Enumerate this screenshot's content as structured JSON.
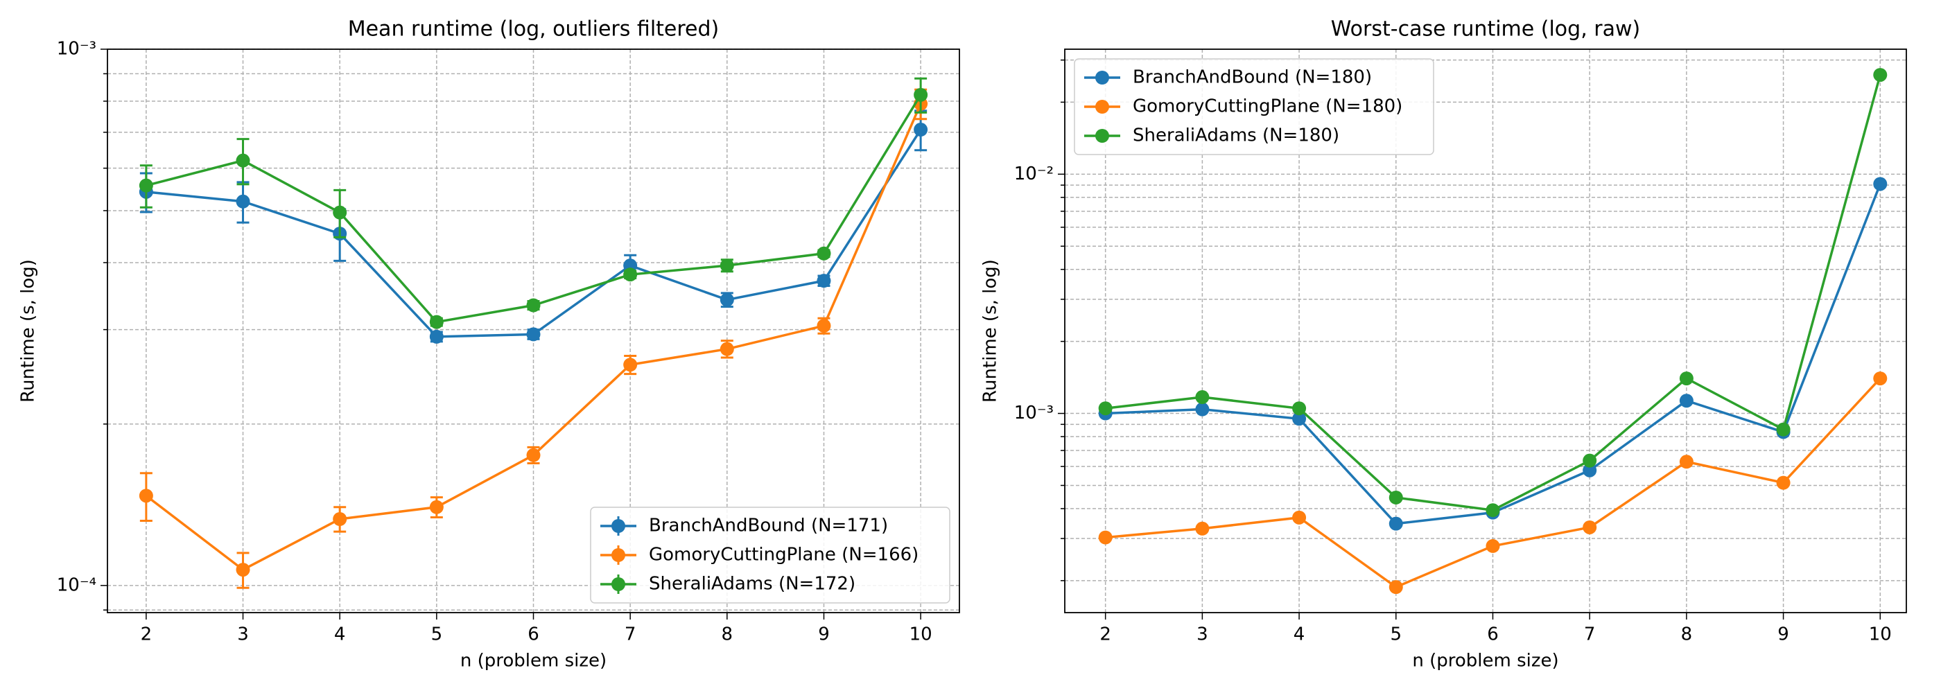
{
  "chart_data": [
    {
      "type": "line",
      "title": "Mean runtime (log, outliers filtered)",
      "x_label": "n (problem size)",
      "y_label": "Runtime (s, log)",
      "x": [
        2,
        3,
        4,
        5,
        6,
        7,
        8,
        9,
        10
      ],
      "xlim": [
        1.6,
        10.4
      ],
      "xticks": [
        2,
        3,
        4,
        5,
        6,
        7,
        8,
        9,
        10
      ],
      "log_y": true,
      "ylim": [
        8.9e-05,
        0.001
      ],
      "yticks": [
        {
          "value": 0.0001,
          "label": "10⁻⁴"
        },
        {
          "value": 0.001,
          "label": "10⁻³"
        }
      ],
      "minor_yticks": [
        9e-05,
        0.0002,
        0.0003,
        0.0004,
        0.0005,
        0.0006,
        0.0007,
        0.0008,
        0.0009
      ],
      "grid": true,
      "legend": "lower right",
      "series": [
        {
          "name": "BranchAndBound (N=171)",
          "color": "#1f77b4",
          "values": [
            0.000542,
            0.00052,
            0.000453,
            0.000291,
            0.000294,
            0.000395,
            0.000341,
            0.00037,
            0.000708
          ],
          "errors": [
            4.5e-05,
            4.5e-05,
            5e-05,
            6e-06,
            6e-06,
            1.8e-05,
            1e-05,
            8e-06,
            6e-05
          ]
        },
        {
          "name": "GomoryCuttingPlane (N=166)",
          "color": "#ff7f0e",
          "values": [
            0.000147,
            0.000107,
            0.000133,
            0.00014,
            0.000175,
            0.000258,
            0.000276,
            0.000305,
            0.000791
          ],
          "errors": [
            1.5e-05,
            8e-06,
            7e-06,
            6e-06,
            6e-06,
            1e-05,
            1e-05,
            1e-05,
            5e-05
          ]
        },
        {
          "name": "SheraliAdams (N=172)",
          "color": "#2ca02c",
          "values": [
            0.000557,
            0.00062,
            0.000496,
            0.00031,
            0.000333,
            0.00038,
            0.000395,
            0.000416,
            0.000822
          ],
          "errors": [
            5e-05,
            6e-05,
            5e-05,
            5e-06,
            6e-06,
            6e-06,
            1e-05,
            6e-06,
            6e-05
          ]
        }
      ]
    },
    {
      "type": "line",
      "title": "Worst-case runtime (log, raw)",
      "x_label": "n (problem size)",
      "y_label": "Runtime (s, log)",
      "x": [
        2,
        3,
        4,
        5,
        6,
        7,
        8,
        9,
        10
      ],
      "xlim": [
        1.58,
        10.27
      ],
      "xticks": [
        2,
        3,
        4,
        5,
        6,
        7,
        8,
        9,
        10
      ],
      "log_y": true,
      "ylim": [
        0.000147,
        0.0333
      ],
      "yticks": [
        {
          "value": 0.001,
          "label": "10⁻³"
        },
        {
          "value": 0.01,
          "label": "10⁻²"
        }
      ],
      "minor_yticks": [
        0.0002,
        0.0003,
        0.0004,
        0.0005,
        0.0006,
        0.0007,
        0.0008,
        0.0009,
        0.002,
        0.003,
        0.004,
        0.005,
        0.006,
        0.007,
        0.008,
        0.009,
        0.02,
        0.03
      ],
      "grid": true,
      "legend": "upper left",
      "series": [
        {
          "name": "BranchAndBound (N=180)",
          "color": "#1f77b4",
          "values": [
            0.001,
            0.00104,
            0.00095,
            0.000346,
            0.000385,
            0.000578,
            0.00113,
            0.000836,
            0.0091
          ]
        },
        {
          "name": "GomoryCuttingPlane (N=180)",
          "color": "#ff7f0e",
          "values": [
            0.000303,
            0.00033,
            0.000367,
            0.000188,
            0.000279,
            0.000334,
            0.000628,
            0.000513,
            0.0014
          ]
        },
        {
          "name": "SheraliAdams (N=180)",
          "color": "#2ca02c",
          "values": [
            0.00105,
            0.00117,
            0.00105,
            0.000445,
            0.000394,
            0.000635,
            0.0014,
            0.000857,
            0.026
          ]
        }
      ]
    }
  ]
}
